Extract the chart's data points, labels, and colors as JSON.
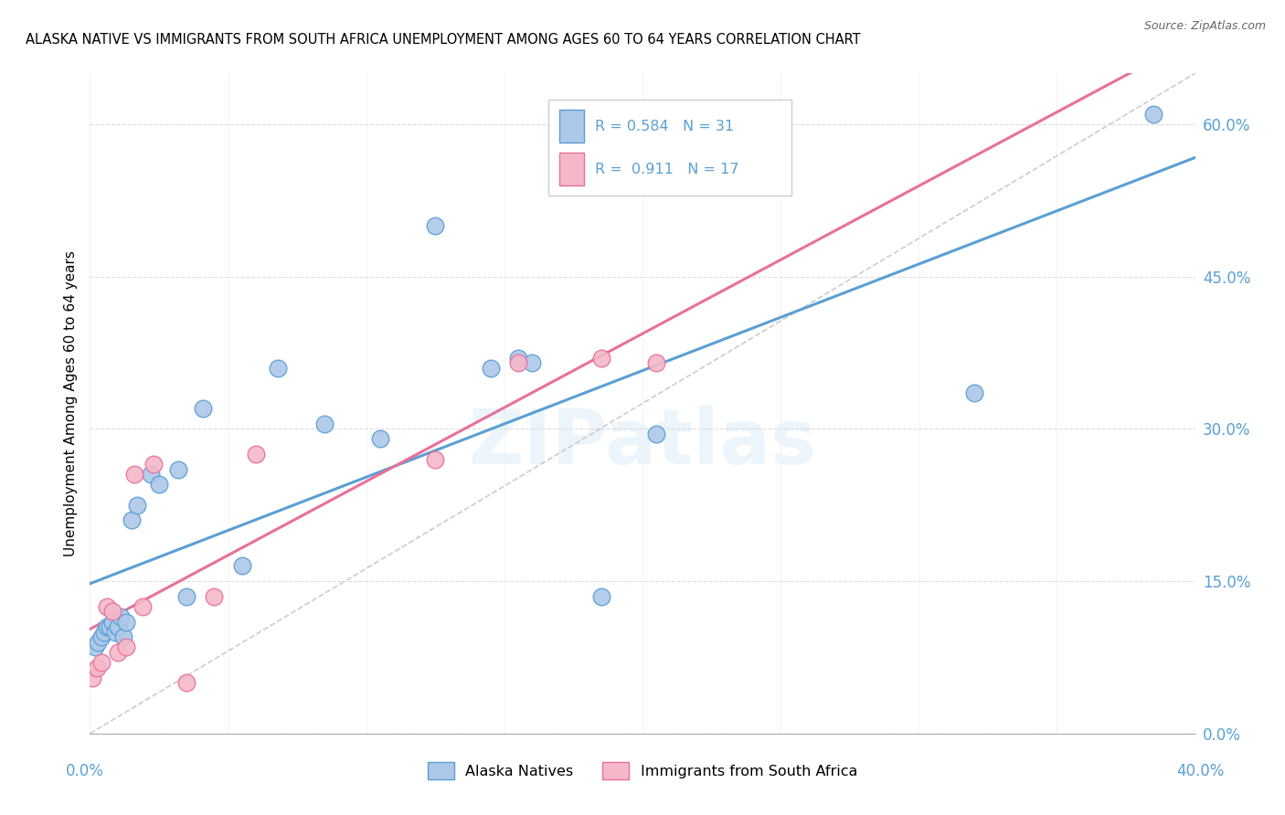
{
  "title": "ALASKA NATIVE VS IMMIGRANTS FROM SOUTH AFRICA UNEMPLOYMENT AMONG AGES 60 TO 64 YEARS CORRELATION CHART",
  "source": "Source: ZipAtlas.com",
  "ylabel": "Unemployment Among Ages 60 to 64 years",
  "watermark": "ZIPatlas",
  "alaska_color": "#adc8e8",
  "alaska_edge_color": "#5a9fd4",
  "sa_color": "#f5b8c8",
  "sa_edge_color": "#e8709a",
  "alaska_line_color": "#5a9fd4",
  "sa_line_color": "#e8709a",
  "diag_color": "#cccccc",
  "label_color": "#5a9fd4",
  "grid_color": "#dddddd",
  "ytick_vals": [
    0.0,
    15.0,
    30.0,
    45.0,
    60.0
  ],
  "ytick_labels": [
    "0.0%",
    "15.0%",
    "30.0%",
    "45.0%",
    "60.0%"
  ],
  "xlim": [
    0.0,
    40.0
  ],
  "ylim": [
    0.0,
    65.0
  ],
  "alaska_x": [
    0.2,
    0.3,
    0.4,
    0.5,
    0.6,
    0.7,
    0.8,
    0.9,
    1.0,
    1.1,
    1.2,
    1.3,
    1.5,
    1.7,
    2.2,
    2.5,
    3.2,
    3.5,
    4.1,
    5.5,
    6.8,
    8.5,
    10.5,
    12.5,
    14.5,
    15.5,
    16.0,
    18.5,
    20.5,
    32.0,
    38.5
  ],
  "alaska_y": [
    8.5,
    9.0,
    9.5,
    10.0,
    10.5,
    10.5,
    11.0,
    10.0,
    10.5,
    11.5,
    9.5,
    11.0,
    21.0,
    22.5,
    25.5,
    24.5,
    26.0,
    13.5,
    32.0,
    16.5,
    36.0,
    30.5,
    29.0,
    50.0,
    36.0,
    37.0,
    36.5,
    13.5,
    29.5,
    33.5,
    61.0
  ],
  "sa_x": [
    0.1,
    0.25,
    0.4,
    0.6,
    0.8,
    1.0,
    1.3,
    1.6,
    1.9,
    2.3,
    3.5,
    4.5,
    6.0,
    12.5,
    15.5,
    18.5,
    20.5
  ],
  "sa_y": [
    5.5,
    6.5,
    7.0,
    12.5,
    12.0,
    8.0,
    8.5,
    25.5,
    12.5,
    26.5,
    5.0,
    13.5,
    27.5,
    27.0,
    36.5,
    37.0,
    36.5
  ]
}
